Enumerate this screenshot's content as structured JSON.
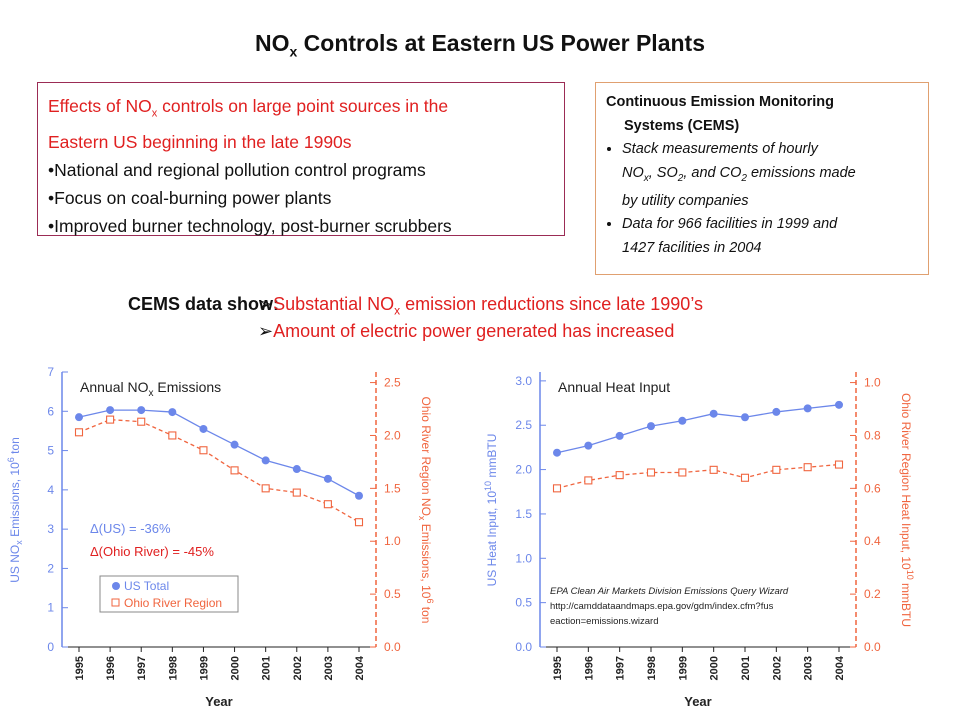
{
  "title": {
    "main": "NO",
    "sub": "x",
    "rest": " Controls at Eastern US Power Plants"
  },
  "effects_box": {
    "line1_a": "Effects of NO",
    "line1_sub": "x",
    "line1_b": " controls on large point sources in the",
    "line2": "Eastern US beginning in the late 1990s",
    "bullets": [
      "•National and regional pollution control programs",
      "•Focus on coal-burning power plants",
      "•Improved burner technology, post-burner scrubbers"
    ]
  },
  "cems_box": {
    "head1": "Continuous  Emission Monitoring",
    "head2": "Systems (CEMS)",
    "bullet1_a": "Stack measurements of hourly",
    "bullet1_b": "NO",
    "bullet1_b_sub": "x",
    "bullet1_c": ", SO",
    "bullet1_c_sub": "2",
    "bullet1_d": ", and CO",
    "bullet1_d_sub": "2",
    "bullet1_e": " emissions made",
    "bullet1_f": "by utility companies",
    "bullet2_a": "Data for 966 facilities in 1999 and",
    "bullet2_b": "1427 facilities in 2004"
  },
  "cems_label": "CEMS data show:",
  "findings": {
    "arrow": "➢",
    "f1_a": "Substantial NO",
    "f1_sub": "x",
    "f1_b": " emission reductions since late 1990’s",
    "f2": "Amount of electric power generated has increased"
  },
  "colors": {
    "us": "#6c87ea",
    "ohio": "#f0653f",
    "effects_border": "#9b2c55",
    "cems_border": "#e0a070",
    "finding": "#e02020"
  },
  "chart_data": [
    {
      "type": "line",
      "title": "Annual NOx Emissions",
      "xlabel": "Year",
      "ylabel_left": "US NOx Emissions, 10^6 ton",
      "ylabel_right": "Ohio River Region NOx Emissions, 10^6 ton",
      "x": [
        "1995",
        "1996",
        "1997",
        "1998",
        "1999",
        "2000",
        "2001",
        "2002",
        "2003",
        "2004"
      ],
      "ylim_left": [
        0,
        7
      ],
      "ylim_right": [
        0,
        2.6
      ],
      "yticks_left": [
        "0",
        "1",
        "2",
        "3",
        "4",
        "5",
        "6",
        "7"
      ],
      "yticks_right": [
        "0.0",
        "0.5",
        "1.0",
        "1.5",
        "2.0",
        "2.5"
      ],
      "series": [
        {
          "name": "US Total",
          "axis": "left",
          "values": [
            5.85,
            6.03,
            6.03,
            5.98,
            5.55,
            5.15,
            4.75,
            4.53,
            4.28,
            3.85
          ]
        },
        {
          "name": "Ohio River Region",
          "axis": "right",
          "values": [
            2.03,
            2.15,
            2.13,
            2.0,
            1.86,
            1.67,
            1.5,
            1.46,
            1.35,
            1.18
          ]
        }
      ],
      "annotations": [
        "Δ(US) = -36%",
        "Δ(Ohio River)  = -45%"
      ],
      "legend": "bottom-left"
    },
    {
      "type": "line",
      "title": "Annual Heat Input",
      "xlabel": "Year",
      "ylabel_left": "US Heat Input, 10^10 mmBTU",
      "ylabel_right": "Ohio River Region Heat Input, 10^10 mmBTU",
      "x": [
        "1995",
        "1996",
        "1997",
        "1998",
        "1999",
        "2000",
        "2001",
        "2002",
        "2003",
        "2004"
      ],
      "ylim_left": [
        0,
        3.1
      ],
      "ylim_right": [
        0,
        1.04
      ],
      "yticks_left": [
        "0.0",
        "0.5",
        "1.0",
        "1.5",
        "2.0",
        "2.5",
        "3.0"
      ],
      "yticks_right": [
        "0.0",
        "0.2",
        "0.4",
        "0.6",
        "0.8",
        "1.0"
      ],
      "series": [
        {
          "name": "US Total",
          "axis": "left",
          "values": [
            2.19,
            2.27,
            2.38,
            2.49,
            2.55,
            2.63,
            2.59,
            2.65,
            2.69,
            2.73
          ]
        },
        {
          "name": "Ohio River Region",
          "axis": "right",
          "values": [
            0.6,
            0.63,
            0.65,
            0.66,
            0.66,
            0.67,
            0.64,
            0.67,
            0.68,
            0.69
          ]
        }
      ],
      "source_note": [
        "EPA Clean Air Markets Division Emissions Query Wizard",
        "http://camddataandmaps.epa.gov/gdm/index.cfm?fus",
        "eaction=emissions.wizard"
      ]
    }
  ]
}
